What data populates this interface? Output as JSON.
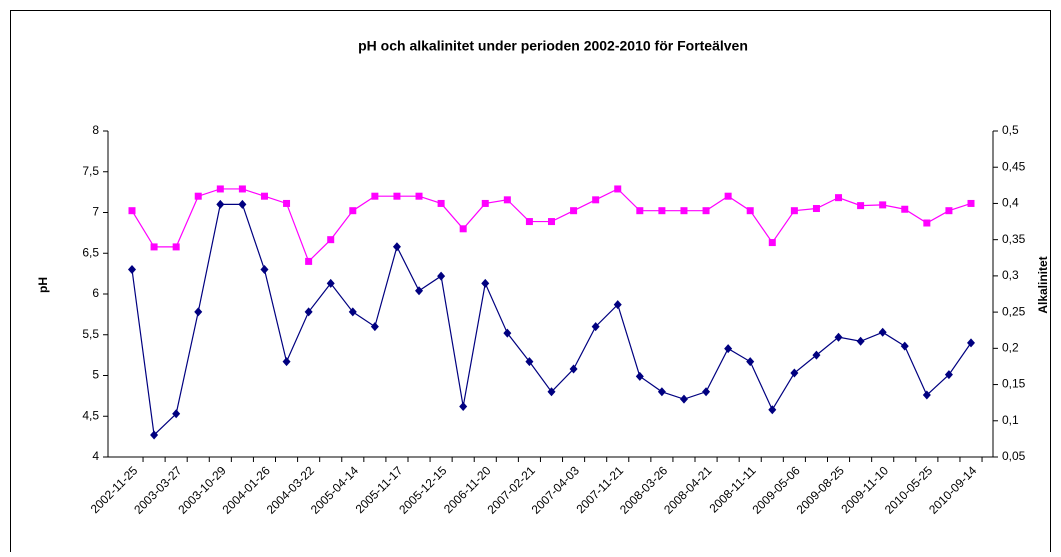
{
  "chart_data": {
    "type": "line",
    "title": "pH och alkalinitet under perioden 2002-2010 för Forteälven",
    "y_label": "pH",
    "y2_label": "Alkalinitet",
    "categories": [
      "2002-11-25",
      null,
      "2003-03-27",
      null,
      "2003-10-29",
      null,
      "2004-01-26",
      null,
      "2004-03-22",
      null,
      "2005-04-14",
      null,
      "2005-11-17",
      null,
      "2005-12-15",
      null,
      "2006-11-20",
      null,
      "2007-02-21",
      null,
      "2007-04-03",
      null,
      "2007-11-21",
      null,
      "2008-03-26",
      null,
      "2008-04-21",
      null,
      "2008-11-11",
      null,
      "2009-05-06",
      null,
      "2009-08-25",
      null,
      "2009-11-10",
      null,
      "2010-05-25",
      null,
      "2010-09-14"
    ],
    "series": [
      {
        "color": "#000080",
        "marker": "diamond",
        "values": [
          6.3,
          4.27,
          4.53,
          5.78,
          7.1,
          7.1,
          6.3,
          5.17,
          5.78,
          6.13,
          5.78,
          5.6,
          6.58,
          6.04,
          6.22,
          4.62,
          6.13,
          5.52,
          5.17,
          4.8,
          5.08,
          5.6,
          5.87,
          4.99,
          4.8,
          4.71,
          4.8,
          5.33,
          5.17,
          4.58,
          5.03,
          5.25,
          5.47,
          5.42,
          5.53,
          5.36,
          4.76,
          5.01,
          5.4
        ]
      },
      {
        "color": "#ff00ff",
        "marker": "square",
        "axis": "y2",
        "values": [
          0.39,
          0.34,
          0.34,
          0.41,
          0.42,
          0.42,
          0.41,
          0.4,
          0.32,
          0.35,
          0.39,
          0.41,
          0.41,
          0.41,
          0.4,
          0.365,
          0.4,
          0.405,
          0.375,
          0.375,
          0.39,
          0.405,
          0.42,
          0.39,
          0.39,
          0.39,
          0.39,
          0.41,
          0.39,
          0.346,
          0.39,
          0.393,
          0.408,
          0.397,
          0.398,
          0.392,
          0.373,
          0.39,
          0.4
        ]
      }
    ],
    "ylim": [
      4,
      8
    ],
    "yticks": [
      4,
      {
        "value": 4.5,
        "label": "4,5"
      },
      5,
      {
        "value": 5.5,
        "label": "5,5"
      },
      6,
      {
        "value": 6.5,
        "label": "6,5"
      },
      7,
      {
        "value": 7.5,
        "label": "7,5"
      },
      8
    ],
    "y2lim": [
      0.05,
      0.5
    ],
    "y2ticks": [
      {
        "value": 0.05,
        "label": "0,05"
      },
      {
        "value": 0.1,
        "label": "0,1"
      },
      {
        "value": 0.15,
        "label": "0,15"
      },
      {
        "value": 0.2,
        "label": "0,2"
      },
      {
        "value": 0.25,
        "label": "0,25"
      },
      {
        "value": 0.3,
        "label": "0,3"
      },
      {
        "value": 0.35,
        "label": "0,35"
      },
      {
        "value": 0.4,
        "label": "0,4"
      },
      {
        "value": 0.45,
        "label": "0,45"
      },
      {
        "value": 0.5,
        "label": "0,5"
      }
    ],
    "grid": false
  }
}
